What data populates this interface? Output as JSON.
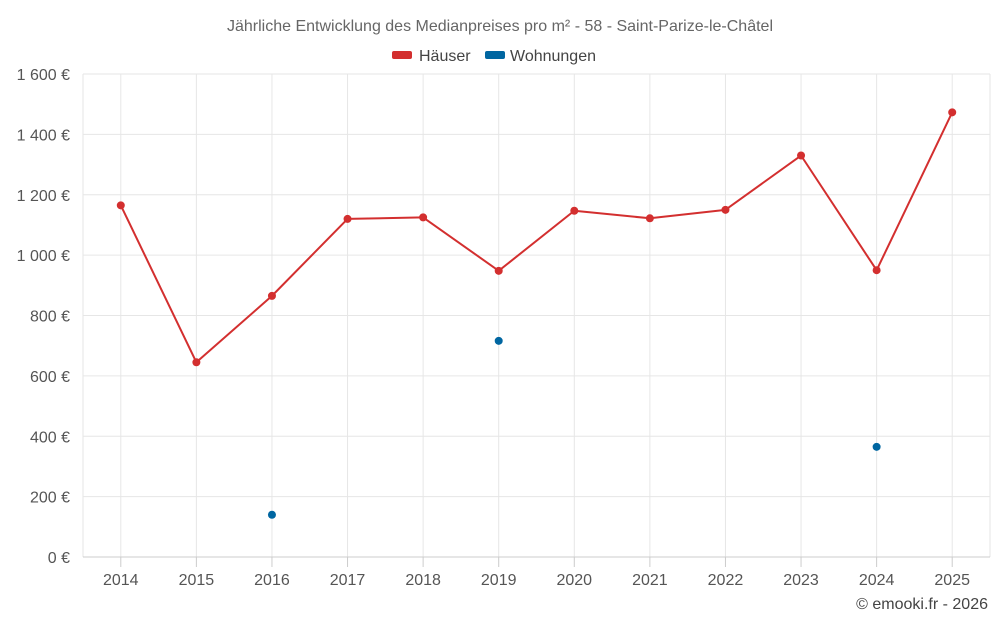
{
  "chart_data": {
    "type": "line",
    "title": "Jährliche Entwicklung des Medianpreises pro m² - 58 - Saint-Parize-le-Châtel",
    "categories": [
      "2014",
      "2015",
      "2016",
      "2017",
      "2018",
      "2019",
      "2020",
      "2021",
      "2022",
      "2023",
      "2024",
      "2025"
    ],
    "ylim": [
      0,
      1600
    ],
    "yticks": [
      0,
      200,
      400,
      600,
      800,
      1000,
      1200,
      1400,
      1600
    ],
    "ytick_labels": [
      "0 €",
      "200 €",
      "400 €",
      "600 €",
      "800 €",
      "1 000 €",
      "1 200 €",
      "1 400 €",
      "1 600 €"
    ],
    "xlabel": "",
    "ylabel": "",
    "grid": true,
    "legend_position": "top-center",
    "series": [
      {
        "name": "Häuser",
        "color": "#d32f2f",
        "style": "line-with-markers",
        "values": [
          1165,
          645,
          865,
          1120,
          1125,
          948,
          1147,
          1122,
          1150,
          1330,
          950,
          1473
        ]
      },
      {
        "name": "Wohnungen",
        "color": "#0066a1",
        "style": "markers",
        "values": [
          null,
          null,
          140,
          null,
          null,
          716,
          null,
          null,
          null,
          null,
          365,
          null
        ]
      }
    ],
    "credit": "© emooki.fr - 2026"
  }
}
